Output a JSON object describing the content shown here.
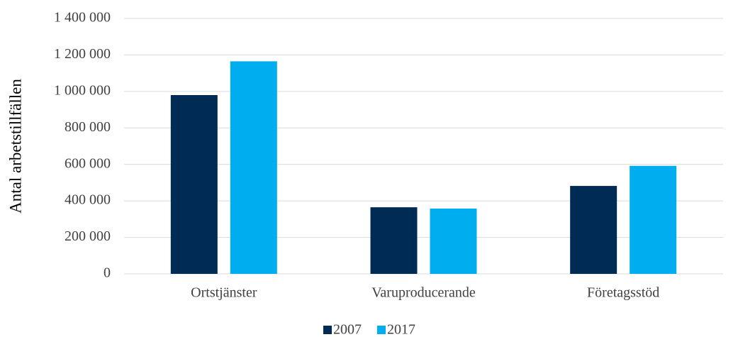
{
  "chart_data": {
    "type": "bar",
    "y_label": "Antal arbetstillfällen",
    "categories": [
      "Ortstjänster",
      "Varuproducerande",
      "Företagsstöd"
    ],
    "series": [
      {
        "name": "2007",
        "color": "#002b55",
        "values": [
          980000,
          365000,
          482000
        ]
      },
      {
        "name": "2017",
        "color": "#00aeef",
        "values": [
          1165000,
          358000,
          592000
        ]
      }
    ],
    "ylim": [
      0,
      1400000
    ],
    "yticks": [
      0,
      {
        "value": 200000,
        "label": "200 000"
      },
      {
        "value": 400000,
        "label": "400 000"
      },
      {
        "value": 600000,
        "label": "600 000"
      },
      {
        "value": 800000,
        "label": "800 000"
      },
      {
        "value": 1000000,
        "label": "1 000 000"
      },
      {
        "value": 1200000,
        "label": "1 200 000"
      },
      {
        "value": 1400000,
        "label": "1 400 000"
      }
    ],
    "grid": true,
    "legend": "bottom"
  }
}
